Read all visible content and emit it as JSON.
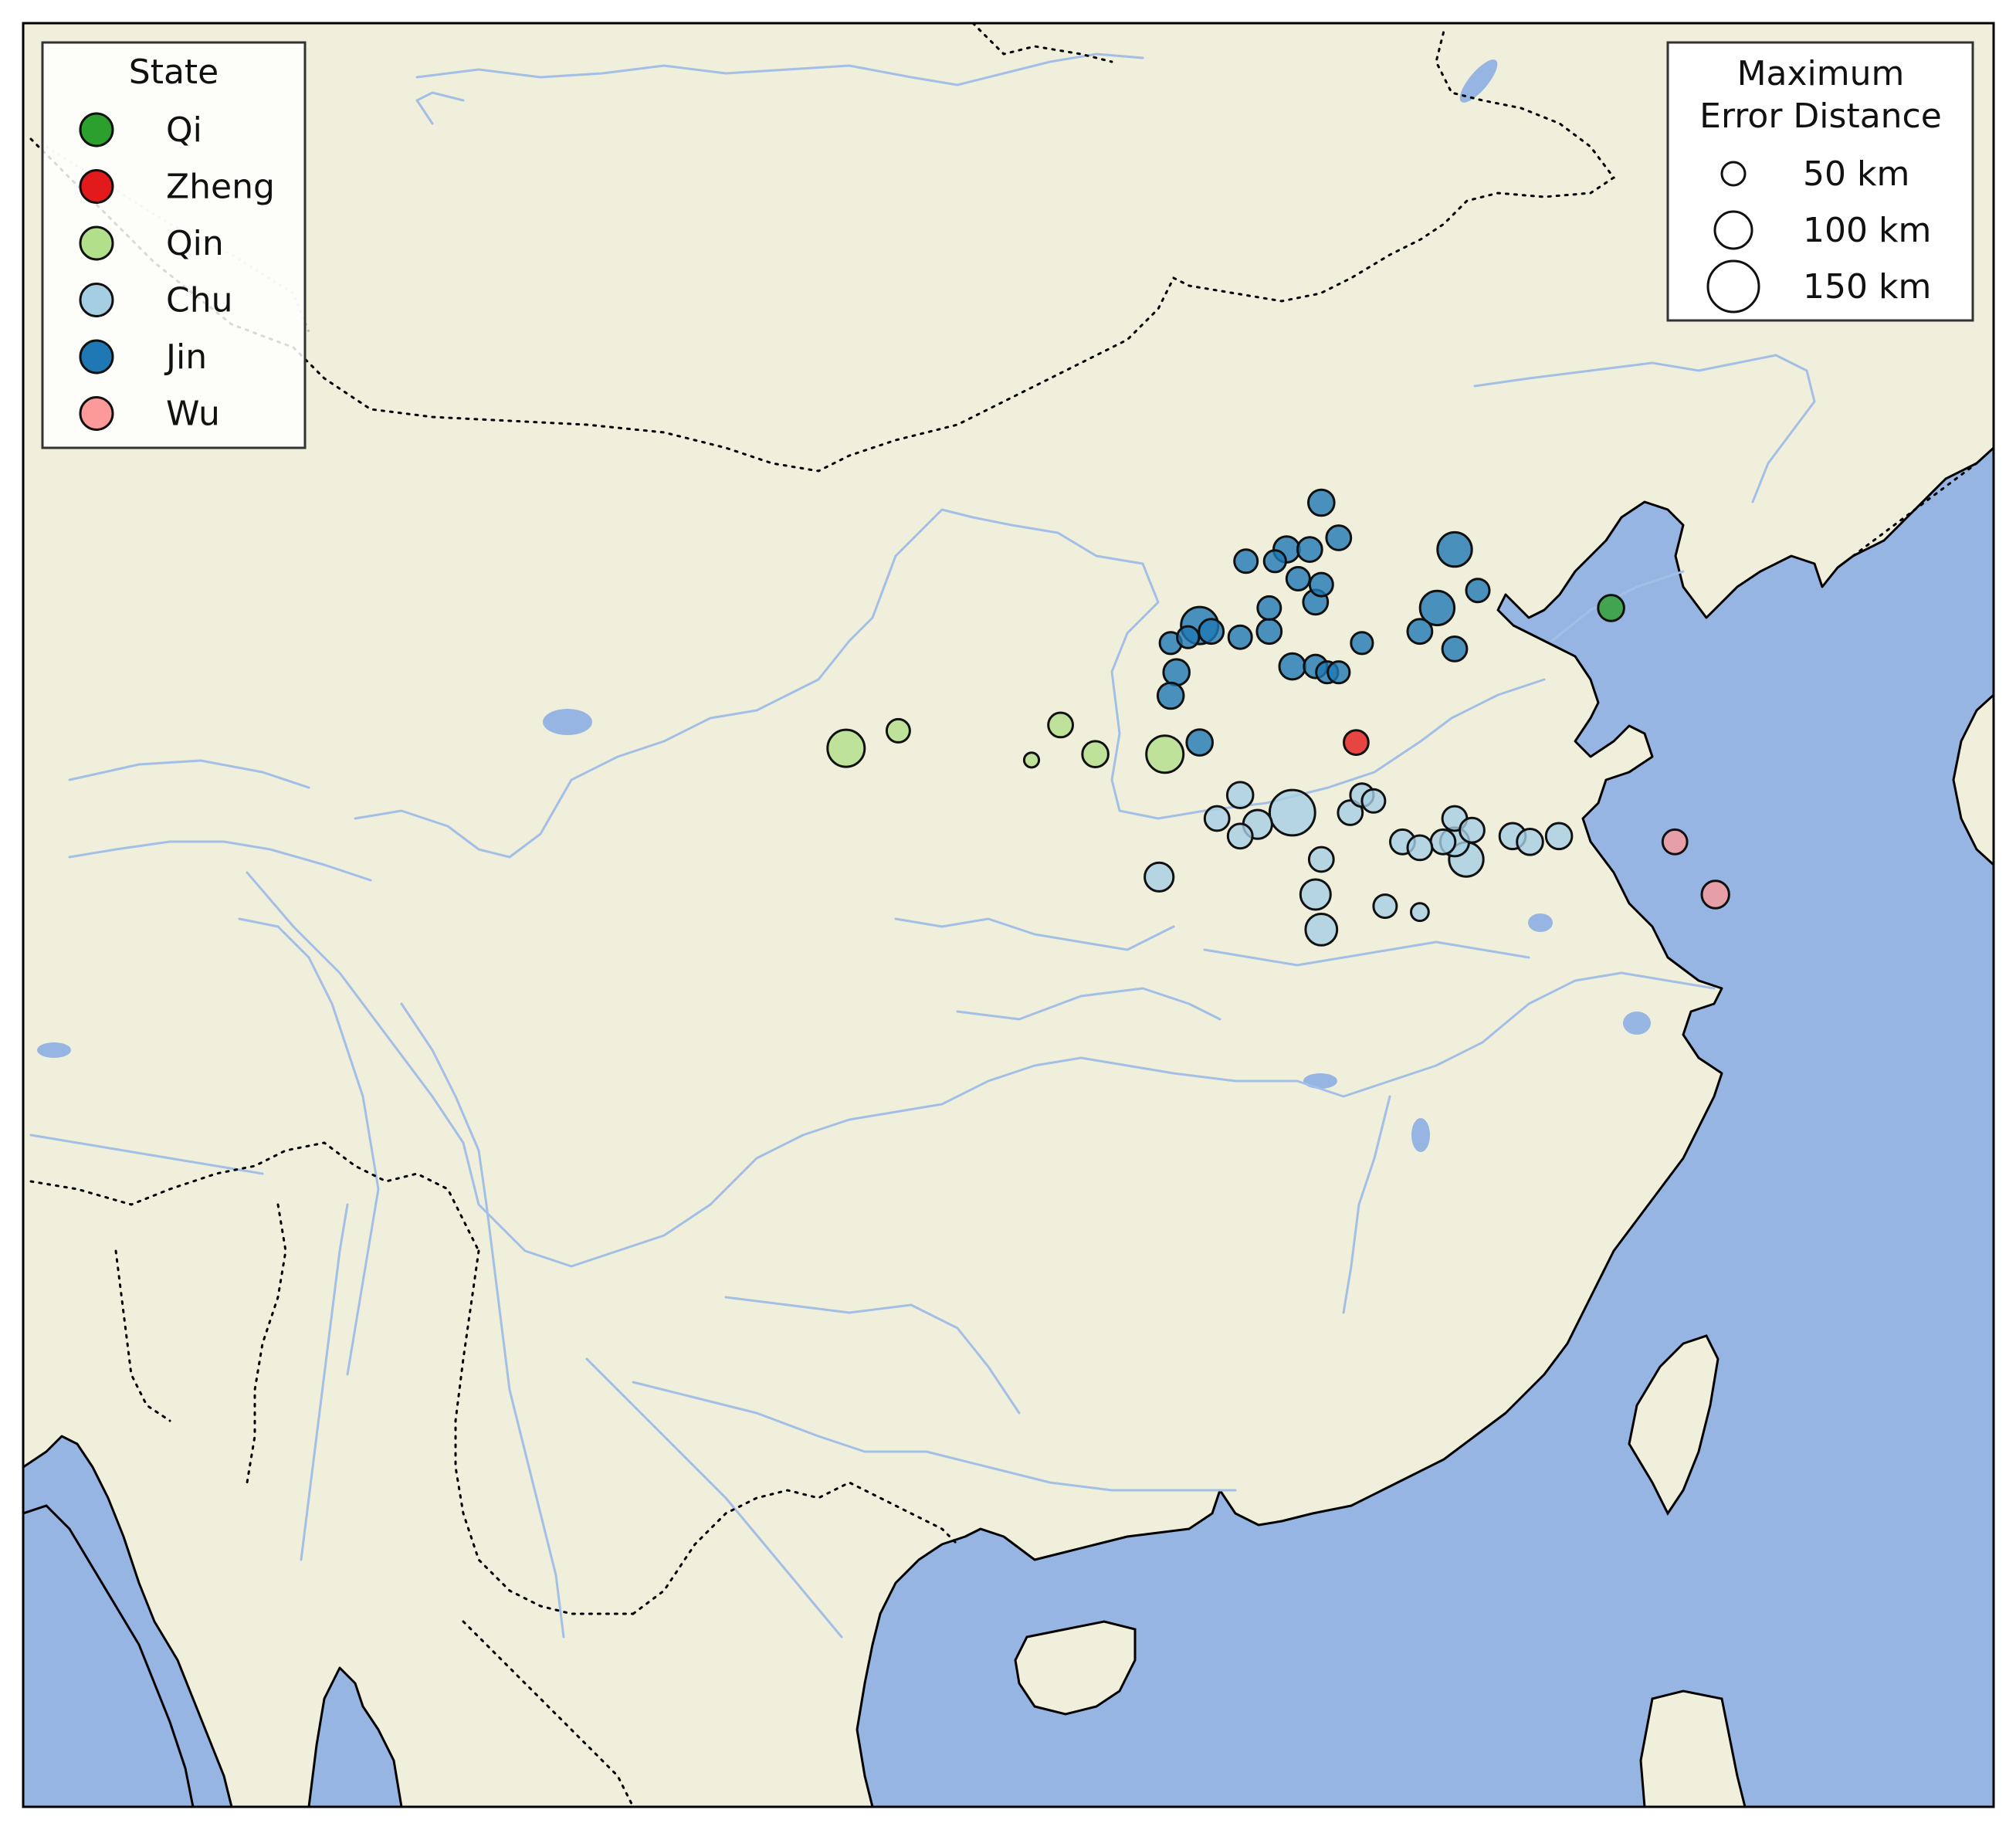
{
  "colors": {
    "land": "#f0efdc",
    "ocean": "#97b5e2",
    "river": "#a3bfe6",
    "coast": "#000000",
    "Qi": "#2ca02c",
    "Zheng": "#e31a1c",
    "Qin": "#b2df8a",
    "Chu": "#a6cee3",
    "Jin": "#1f78b4",
    "Wu": "#fb9a99"
  },
  "legend_state": {
    "title": "State",
    "entries": [
      {
        "label": "Qi",
        "key": "Qi"
      },
      {
        "label": "Zheng",
        "key": "Zheng"
      },
      {
        "label": "Qin",
        "key": "Qin"
      },
      {
        "label": "Chu",
        "key": "Chu"
      },
      {
        "label": "Jin",
        "key": "Jin"
      },
      {
        "label": "Wu",
        "key": "Wu"
      }
    ]
  },
  "legend_size": {
    "title_line1": "Maximum",
    "title_line2": "Error Distance",
    "entries": [
      {
        "label": "50 km",
        "km": 50
      },
      {
        "label": "100 km",
        "km": 100
      },
      {
        "label": "150 km",
        "km": 150
      }
    ]
  },
  "chart_data": {
    "type": "scatter",
    "x_axis": "longitude",
    "y_axis": "latitude",
    "xlim": [
      90.5,
      124.5
    ],
    "ylim": [
      16.5,
      47
    ],
    "size_variable": "max error distance (km)",
    "series": [
      {
        "name": "Qi",
        "points": [
          [
            117.9,
            37.0,
            60
          ]
        ]
      },
      {
        "name": "Zheng",
        "points": [
          [
            113.5,
            34.7,
            55
          ]
        ]
      },
      {
        "name": "Qin",
        "points": [
          [
            108.4,
            35.0,
            55
          ],
          [
            109.0,
            34.5,
            60
          ],
          [
            110.2,
            34.5,
            100
          ],
          [
            105.6,
            34.9,
            50
          ],
          [
            104.7,
            34.6,
            100
          ],
          [
            107.9,
            34.4,
            20
          ]
        ]
      },
      {
        "name": "Chu",
        "points": [
          [
            111.5,
            33.8,
            60
          ],
          [
            112.4,
            33.5,
            130
          ],
          [
            111.8,
            33.3,
            70
          ],
          [
            111.1,
            33.4,
            55
          ],
          [
            111.5,
            33.1,
            55
          ],
          [
            113.4,
            33.5,
            55
          ],
          [
            113.6,
            33.8,
            50
          ],
          [
            113.8,
            33.7,
            50
          ],
          [
            115.2,
            33.4,
            55
          ],
          [
            116.2,
            33.1,
            60
          ],
          [
            115.5,
            33.2,
            55
          ],
          [
            114.3,
            33.0,
            55
          ],
          [
            115.0,
            33.0,
            55
          ],
          [
            115.2,
            33.0,
            70
          ],
          [
            114.6,
            32.9,
            55
          ],
          [
            112.9,
            32.7,
            55
          ],
          [
            115.4,
            32.7,
            90
          ],
          [
            117.0,
            33.1,
            60
          ],
          [
            116.5,
            33.0,
            60
          ],
          [
            112.8,
            32.1,
            75
          ],
          [
            110.1,
            32.4,
            70
          ],
          [
            112.9,
            31.5,
            80
          ],
          [
            114.0,
            31.9,
            50
          ],
          [
            114.6,
            31.8,
            30
          ]
        ]
      },
      {
        "name": "Jin",
        "points": [
          [
            112.9,
            38.8,
            60
          ],
          [
            113.2,
            38.2,
            55
          ],
          [
            112.3,
            38.0,
            60
          ],
          [
            112.7,
            38.0,
            55
          ],
          [
            111.6,
            37.8,
            50
          ],
          [
            112.1,
            37.8,
            45
          ],
          [
            112.5,
            37.5,
            50
          ],
          [
            112.9,
            37.4,
            50
          ],
          [
            112.8,
            37.1,
            55
          ],
          [
            112.0,
            37.0,
            50
          ],
          [
            115.2,
            38.0,
            90
          ],
          [
            114.9,
            37.0,
            90
          ],
          [
            110.8,
            36.7,
            100
          ],
          [
            111.0,
            36.6,
            55
          ],
          [
            111.5,
            36.5,
            50
          ],
          [
            112.0,
            36.6,
            55
          ],
          [
            114.6,
            36.6,
            55
          ],
          [
            115.2,
            36.3,
            55
          ],
          [
            113.6,
            36.4,
            45
          ],
          [
            112.4,
            36.0,
            60
          ],
          [
            112.8,
            36.0,
            50
          ],
          [
            113.0,
            35.9,
            45
          ],
          [
            113.2,
            35.9,
            45
          ],
          [
            110.4,
            35.9,
            60
          ],
          [
            110.3,
            35.5,
            60
          ],
          [
            110.8,
            34.7,
            60
          ],
          [
            110.3,
            36.4,
            45
          ],
          [
            110.6,
            36.5,
            45
          ],
          [
            115.6,
            37.3,
            50
          ]
        ]
      },
      {
        "name": "Wu",
        "points": [
          [
            119.0,
            33.0,
            55
          ],
          [
            119.7,
            32.1,
            65
          ]
        ]
      }
    ]
  }
}
